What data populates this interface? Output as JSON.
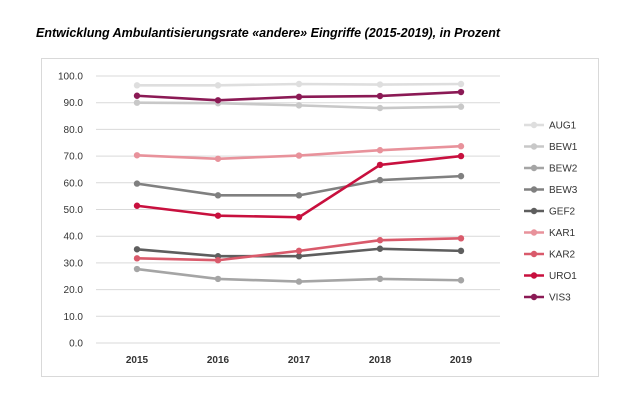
{
  "chart_data": {
    "type": "line",
    "title": "Entwicklung Ambulantisierungsrate «andere» Eingriffe (2015-2019), in Prozent",
    "xlabel": "",
    "ylabel": "",
    "x": [
      "2015",
      "2016",
      "2017",
      "2018",
      "2019"
    ],
    "ylim": [
      0,
      100
    ],
    "yticks": [
      "0.0",
      "10.0",
      "20.0",
      "30.0",
      "40.0",
      "50.0",
      "60.0",
      "70.0",
      "80.0",
      "90.0",
      "100.0"
    ],
    "grid": true,
    "legend_position": "right",
    "series": [
      {
        "name": "AUG1",
        "color": "#dedede",
        "values": [
          96.5,
          96.5,
          97.0,
          96.8,
          97.0
        ]
      },
      {
        "name": "BEW1",
        "color": "#c8c8c8",
        "values": [
          90.0,
          89.8,
          89.0,
          88.0,
          88.5
        ]
      },
      {
        "name": "BEW2",
        "color": "#a5a5a5",
        "values": [
          27.7,
          24.0,
          23.0,
          24.0,
          23.5
        ]
      },
      {
        "name": "BEW3",
        "color": "#808080",
        "values": [
          59.7,
          55.3,
          55.3,
          61.0,
          62.5
        ]
      },
      {
        "name": "GEF2",
        "color": "#5e5e5e",
        "values": [
          35.1,
          32.5,
          32.5,
          35.3,
          34.5
        ]
      },
      {
        "name": "KAR1",
        "color": "#e8929b",
        "values": [
          70.3,
          69.0,
          70.2,
          72.2,
          73.7
        ]
      },
      {
        "name": "KAR2",
        "color": "#d95a6b",
        "values": [
          31.7,
          31.0,
          34.5,
          38.5,
          39.2
        ]
      },
      {
        "name": "URO1",
        "color": "#c8103e",
        "values": [
          51.4,
          47.7,
          47.1,
          66.7,
          70.0
        ]
      },
      {
        "name": "VIS3",
        "color": "#8b1a55",
        "values": [
          92.6,
          90.9,
          92.2,
          92.5,
          94.0
        ]
      }
    ]
  }
}
